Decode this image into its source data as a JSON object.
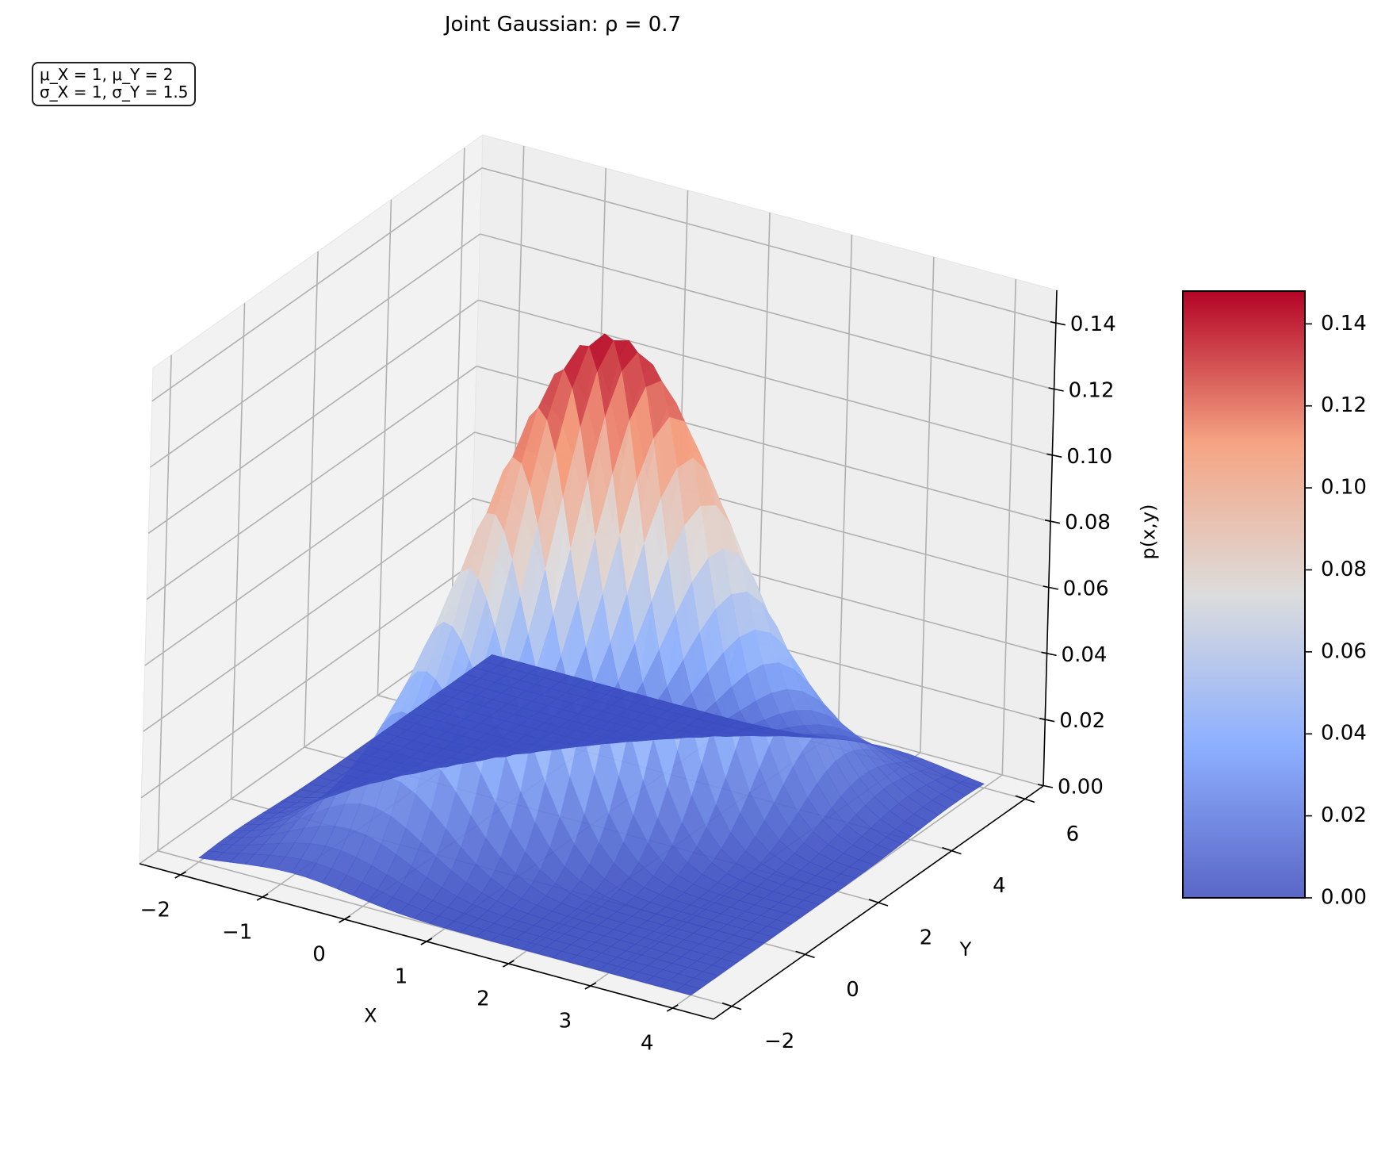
{
  "chart_data": {
    "type": "surface3d",
    "title": "Joint Gaussian: ρ = 0.7",
    "annotation": [
      "μ_X = 1, μ_Y = 2",
      "σ_X = 1, σ_Y = 1.5"
    ],
    "xlabel": "X",
    "ylabel": "Y",
    "zlabel": "p(x,y)",
    "x_ticks": [
      -2,
      -1,
      0,
      1,
      2,
      3,
      4
    ],
    "y_ticks": [
      -2,
      0,
      2,
      4,
      6
    ],
    "z_ticks": [
      0.0,
      0.02,
      0.04,
      0.06,
      0.08,
      0.1,
      0.12,
      0.14
    ],
    "z_tick_labels": [
      "0.00",
      "0.02",
      "0.04",
      "0.06",
      "0.08",
      "0.10",
      "0.12",
      "0.14"
    ],
    "colorbar_ticks": [
      "0.00",
      "0.02",
      "0.04",
      "0.06",
      "0.08",
      "0.10",
      "0.12",
      "0.14"
    ],
    "xlim": [
      -2.5,
      4.5
    ],
    "ylim": [
      -2.5,
      6.5
    ],
    "zlim": [
      0,
      0.15
    ],
    "mu_x": 1,
    "mu_y": 2,
    "sigma_x": 1,
    "sigma_y": 1.5,
    "rho": 0.7,
    "peak_density": 0.148,
    "colormap": "coolwarm",
    "colorbar_range": [
      0,
      0.148
    ],
    "grid": true
  }
}
